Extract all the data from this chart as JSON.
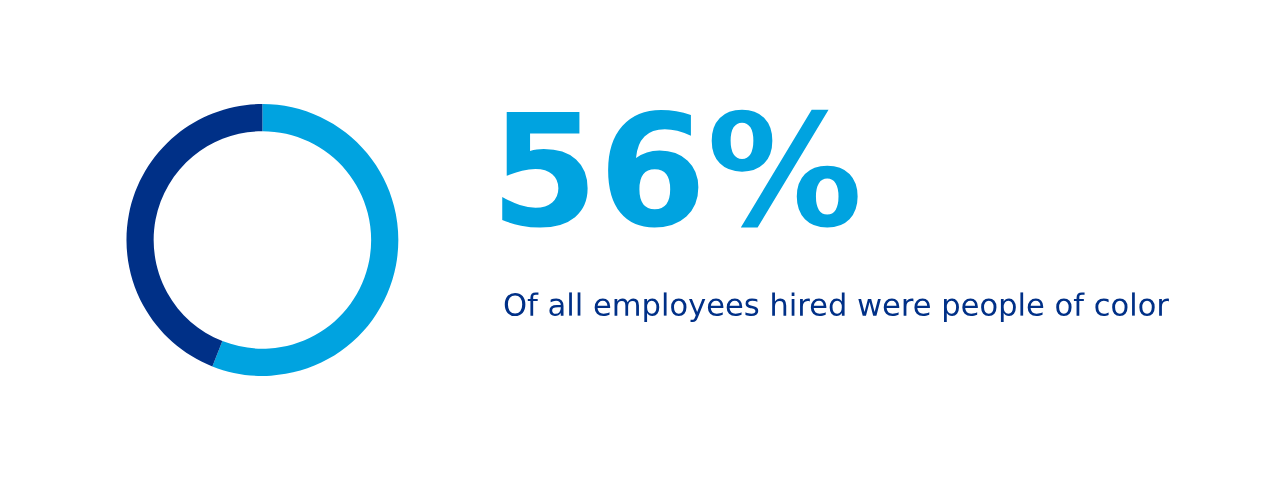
{
  "chart_data": {
    "type": "donut",
    "categories": [
      null,
      null
    ],
    "values": [
      56,
      44
    ],
    "colors": [
      "#00a3e0",
      "#003087"
    ],
    "value_labels": [
      "56%",
      null
    ],
    "annotations": [
      "Of all employees hired were people of color"
    ],
    "legend": false
  }
}
